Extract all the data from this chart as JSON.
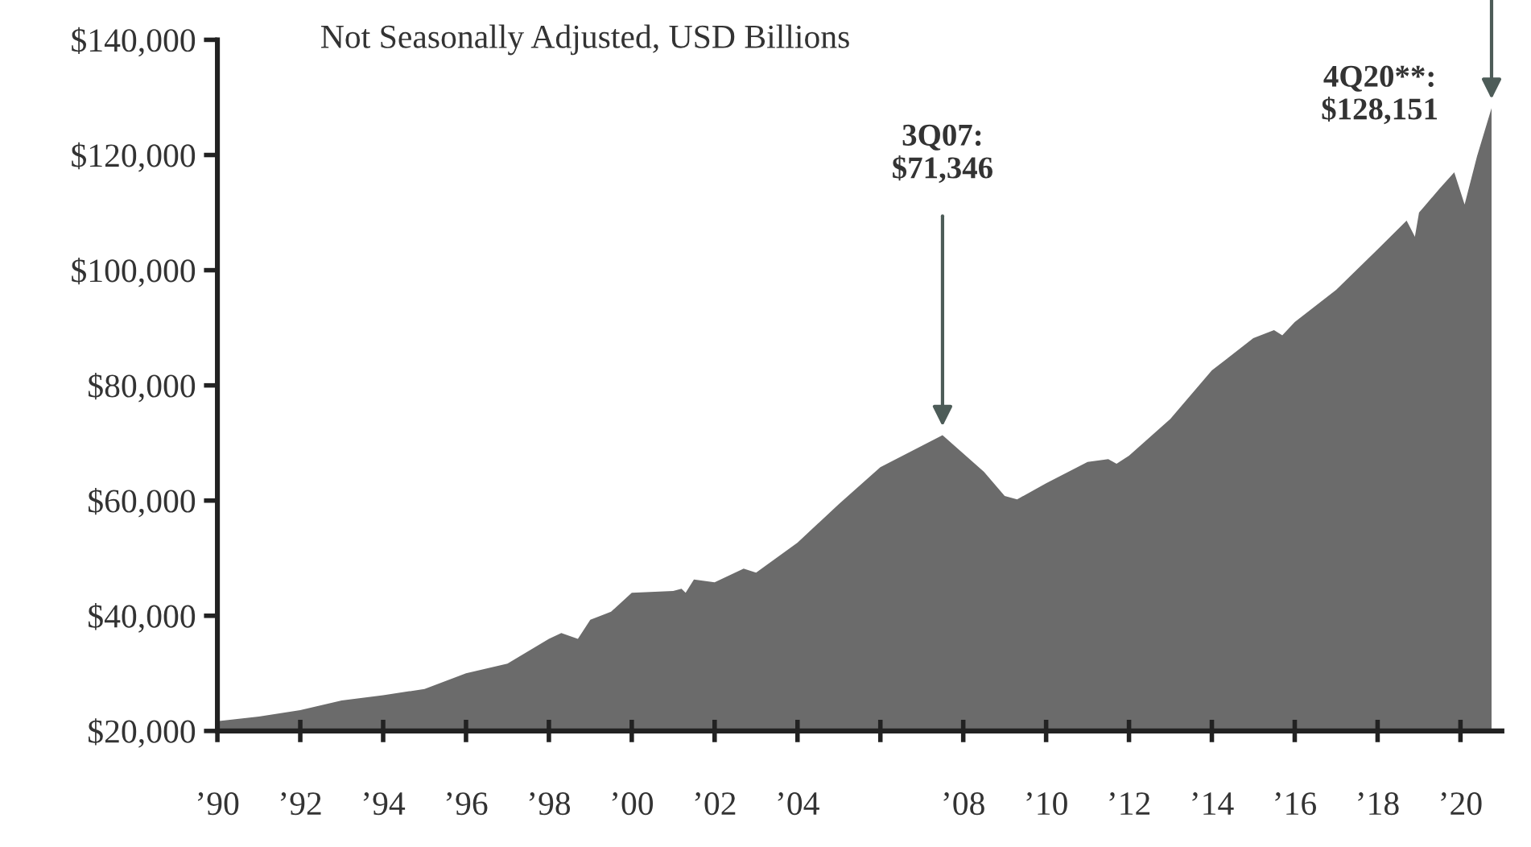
{
  "chart_data": {
    "type": "area",
    "subtitle": "Not Seasonally Adjusted, USD Billions",
    "color": "#6b6b6b",
    "x": [
      1990,
      1991,
      1992,
      1993,
      1994,
      1995,
      1996,
      1997,
      1998,
      1998.3,
      1998.7,
      1999,
      1999.5,
      2000,
      2001,
      2001.2,
      2001.3,
      2001.5,
      2002,
      2002.7,
      2003,
      2004,
      2005,
      2006,
      2007,
      2007.5,
      2008.5,
      2009,
      2009.3,
      2010,
      2011,
      2011.5,
      2011.7,
      2012,
      2013,
      2014,
      2015,
      2015.5,
      2015.7,
      2016,
      2017,
      2018,
      2018.7,
      2018.9,
      2019,
      2019.5,
      2019.85,
      2020.1,
      2020.4,
      2020.75
    ],
    "values": [
      21700,
      22500,
      23600,
      25300,
      26200,
      27300,
      30000,
      31700,
      36000,
      37000,
      36000,
      39300,
      40700,
      44000,
      44300,
      44700,
      44000,
      46300,
      45800,
      48200,
      47500,
      52700,
      59400,
      65800,
      69500,
      71346,
      65000,
      60800,
      60200,
      63000,
      66700,
      67200,
      66400,
      67800,
      74200,
      82600,
      88200,
      89600,
      88700,
      91000,
      96600,
      103600,
      108600,
      105800,
      110000,
      114200,
      117000,
      111400,
      119800,
      128151
    ],
    "xlim": [
      1990,
      2021
    ],
    "xticks": [
      {
        "value": 1990,
        "label": "’90"
      },
      {
        "value": 1992,
        "label": "’92"
      },
      {
        "value": 1994,
        "label": "’94"
      },
      {
        "value": 1996,
        "label": "’96"
      },
      {
        "value": 1998,
        "label": "’98"
      },
      {
        "value": 2000,
        "label": "’00"
      },
      {
        "value": 2002,
        "label": "’02"
      },
      {
        "value": 2004,
        "label": "’04"
      },
      {
        "value": 2006,
        "label": null
      },
      {
        "value": 2008,
        "label": "’08"
      },
      {
        "value": 2010,
        "label": "’10"
      },
      {
        "value": 2012,
        "label": "’12"
      },
      {
        "value": 2014,
        "label": "’14"
      },
      {
        "value": 2016,
        "label": "’16"
      },
      {
        "value": 2018,
        "label": "’18"
      },
      {
        "value": 2020,
        "label": "’20"
      }
    ],
    "ylim": [
      20000,
      140000
    ],
    "yticks": [
      {
        "value": 20000,
        "label": "$20,000"
      },
      {
        "value": 40000,
        "label": "$40,000"
      },
      {
        "value": 60000,
        "label": "$60,000"
      },
      {
        "value": 80000,
        "label": "$80,000"
      },
      {
        "value": 100000,
        "label": "$100,000"
      },
      {
        "value": 120000,
        "label": "$120,000"
      },
      {
        "value": 140000,
        "label": "$140,000"
      }
    ],
    "annotations": [
      {
        "text": "3Q07:\n$71,346",
        "x": 2007.5,
        "y": 71346
      },
      {
        "text": "4Q20**:\n$128,151",
        "x": 2020.75,
        "y": 128151
      }
    ]
  }
}
